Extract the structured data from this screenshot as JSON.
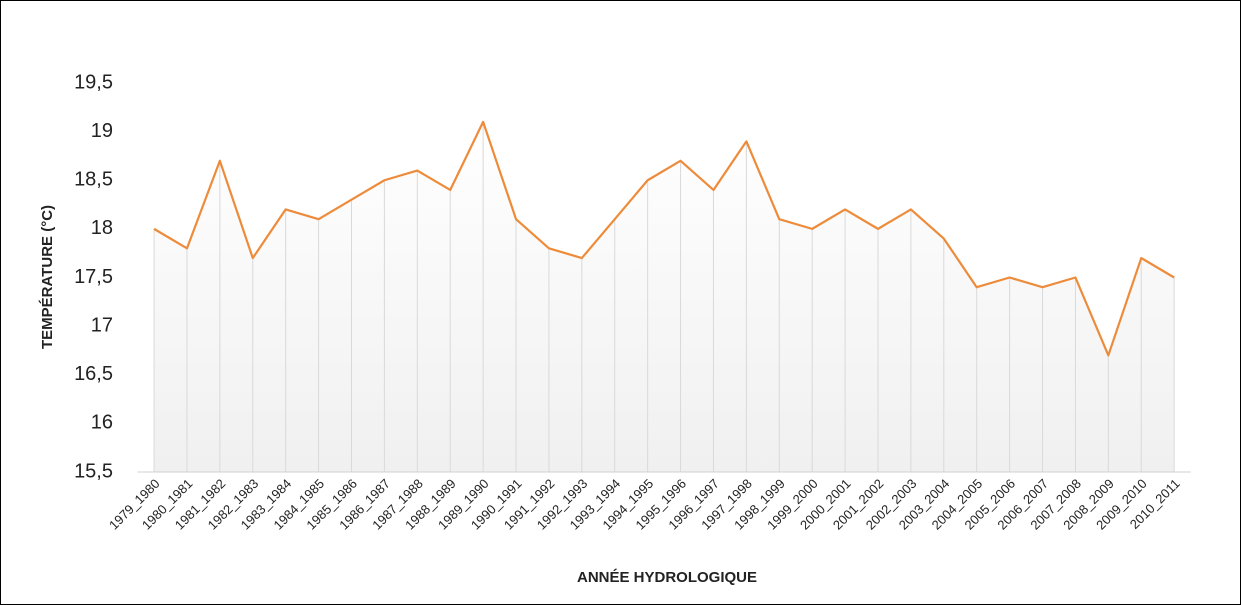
{
  "chart_data": {
    "type": "line",
    "y_label": "TEMPÉRATURE (°C)",
    "x_label": "ANNÉE HYDROLOGIQUE",
    "categories": [
      "1979_1980",
      "1980_1981",
      "1981_1982",
      "1982_1983",
      "1983_1984",
      "1984_1985",
      "1985_1986",
      "1986_1987",
      "1987_1988",
      "1988_1989",
      "1989_1990",
      "1990_1991",
      "1991_1992",
      "1992_1993",
      "1993_1994",
      "1994_1995",
      "1995_1996",
      "1996_1997",
      "1997_1998",
      "1998_1999",
      "1999_2000",
      "2000_2001",
      "2001_2002",
      "2002_2003",
      "2003_2004",
      "2004_2005",
      "2005_2006",
      "2006_2007",
      "2007_2008",
      "2008_2009",
      "2009_2010",
      "2010_2011"
    ],
    "values": [
      18.0,
      17.8,
      18.7,
      17.7,
      18.2,
      18.1,
      18.3,
      18.5,
      18.6,
      18.4,
      19.1,
      18.1,
      17.8,
      17.7,
      18.1,
      18.5,
      18.7,
      18.4,
      18.9,
      18.1,
      18.0,
      18.2,
      18.0,
      18.2,
      17.9,
      17.4,
      17.5,
      17.4,
      17.5,
      16.7,
      17.7,
      17.5
    ],
    "color": "#ed8b3a",
    "ylim": [
      15.5,
      19.5
    ],
    "yticks": [
      {
        "value": 15.5,
        "label": "15,5"
      },
      16,
      {
        "value": 16.5,
        "label": "16,5"
      },
      17,
      {
        "value": 17.5,
        "label": "17,5"
      },
      18,
      {
        "value": 18.5,
        "label": "18,5"
      },
      19,
      {
        "value": 19.5,
        "label": "19,5"
      }
    ],
    "grid": false
  }
}
